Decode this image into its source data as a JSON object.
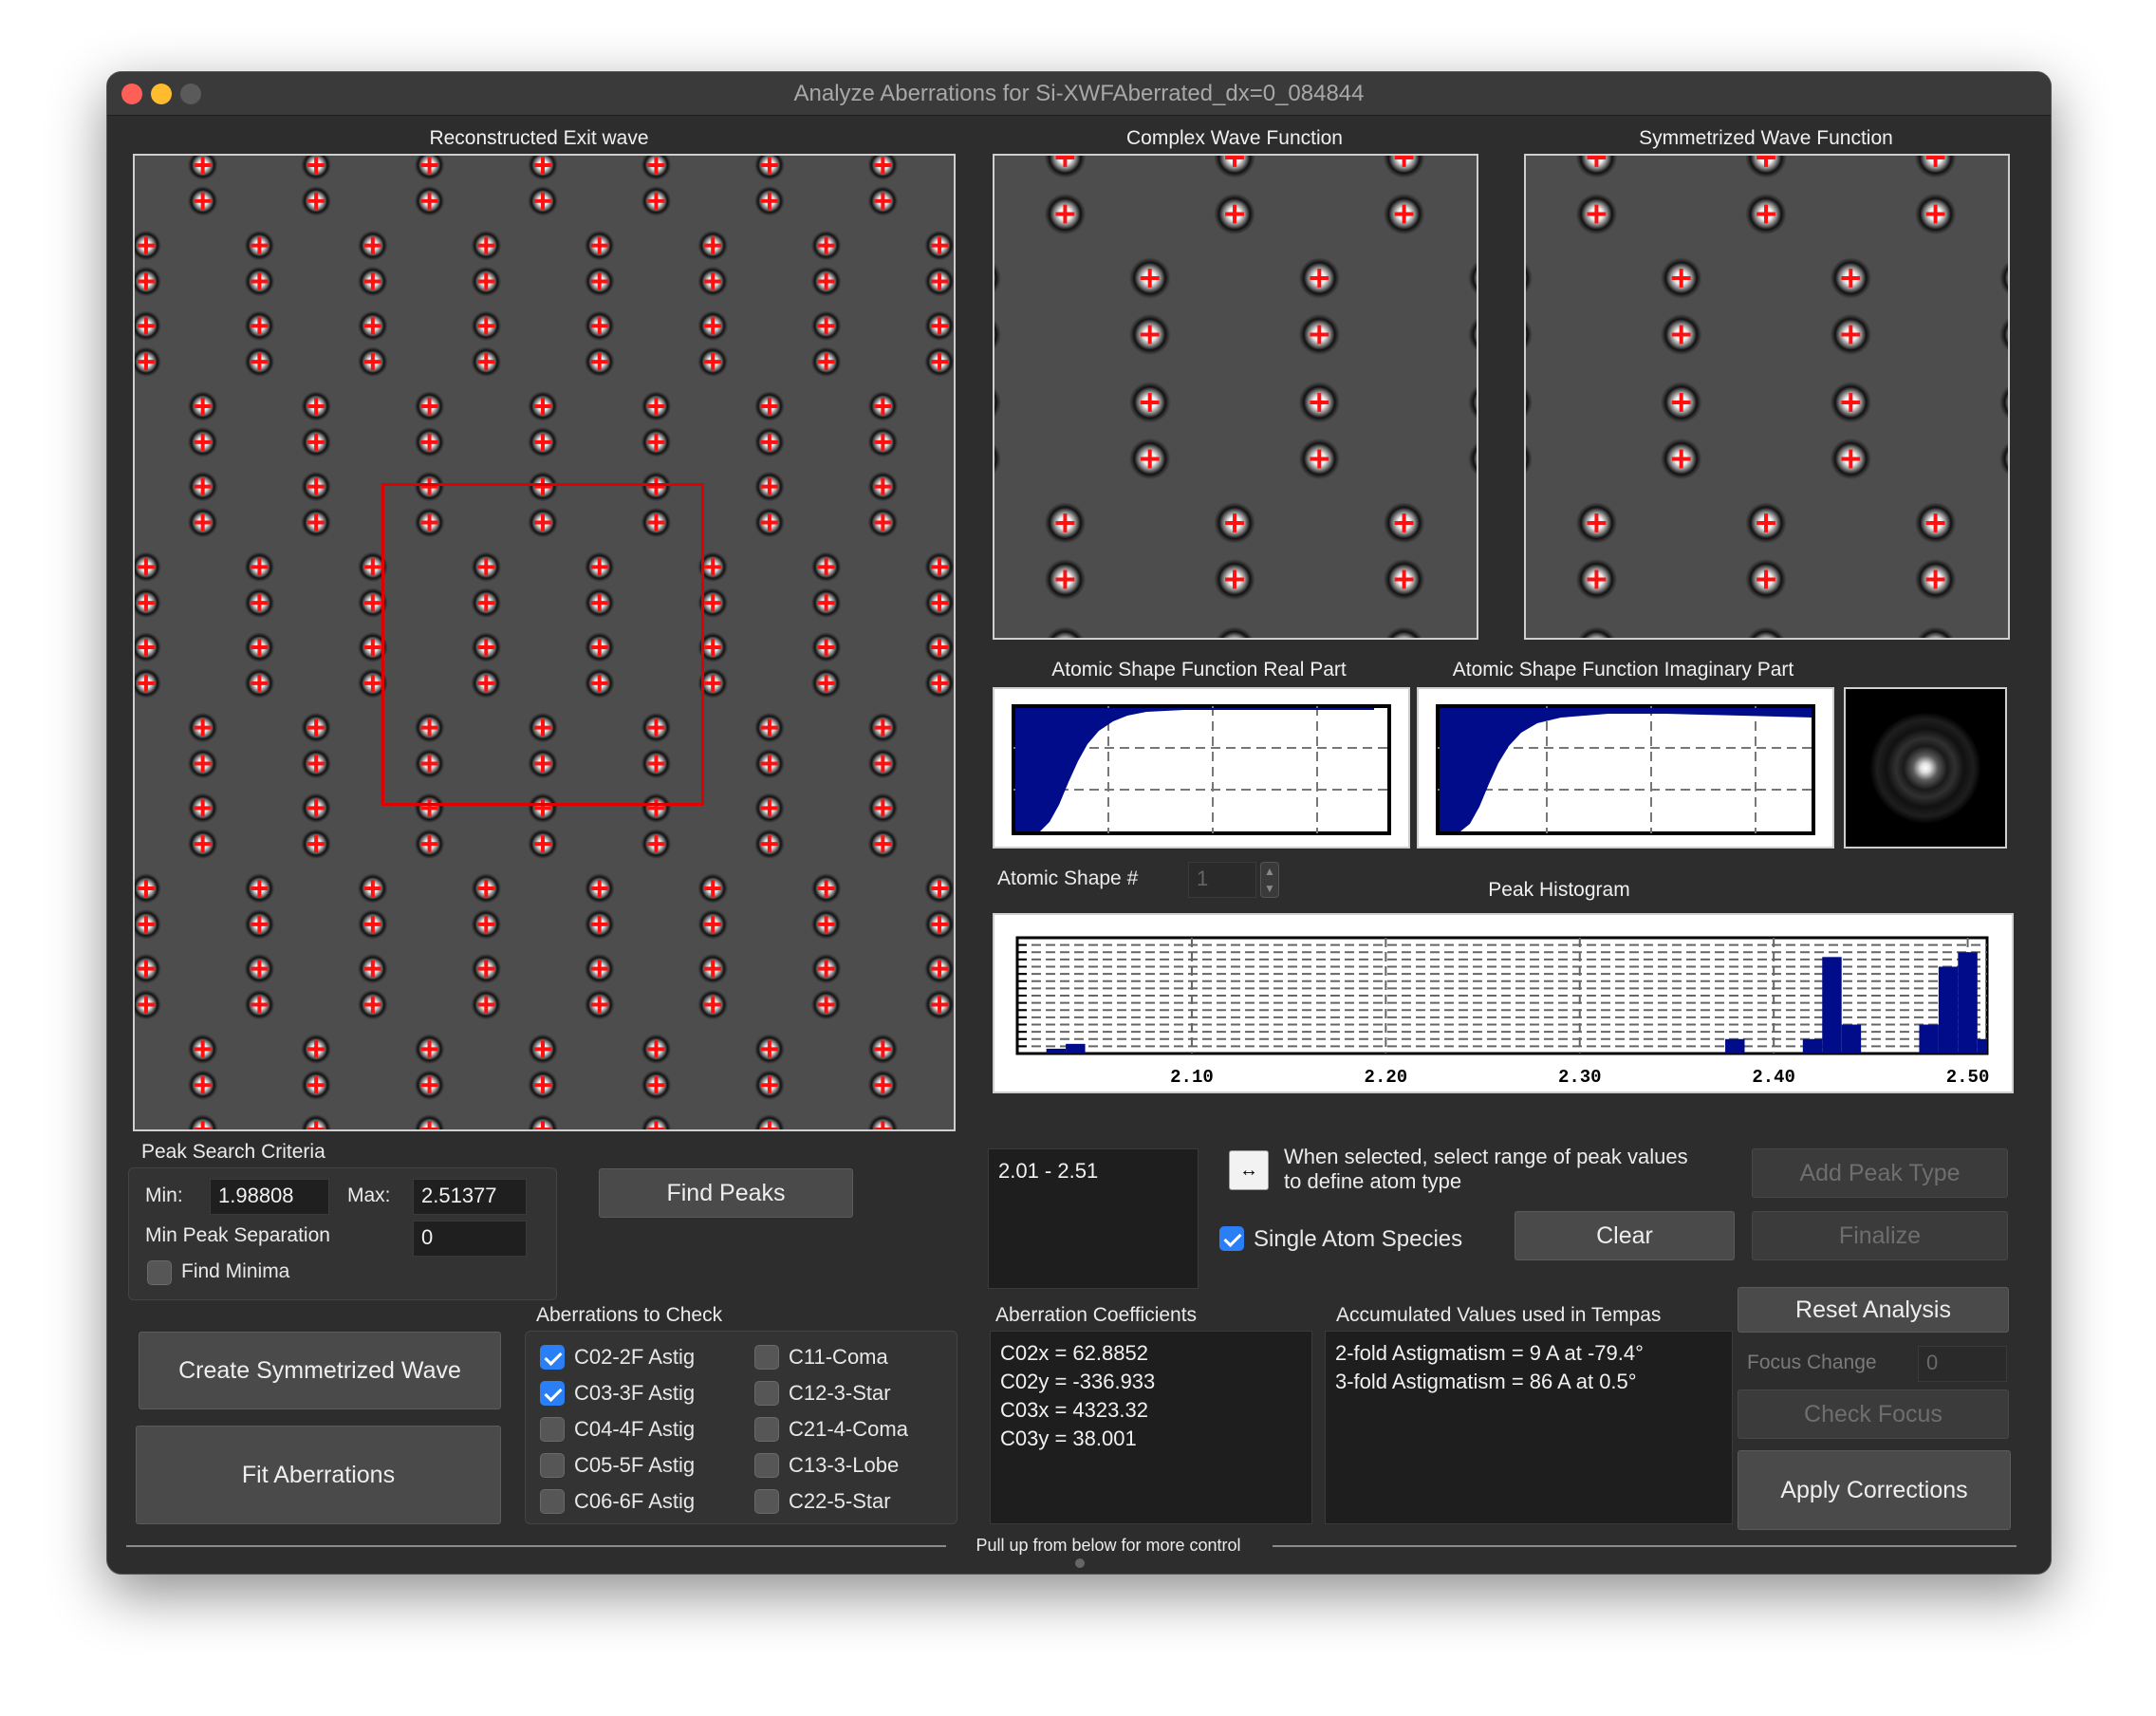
{
  "window": {
    "title": "Analyze Aberrations for Si-XWFAberrated_dx=0_084844",
    "colors": {
      "close": "#ff5f57",
      "minimize": "#febc2e",
      "zoom": "#5a5a5a"
    }
  },
  "panels": {
    "exit_wave_title": "Reconstructed Exit wave",
    "complex_title": "Complex Wave Function",
    "symmetrized_title": "Symmetrized Wave Function",
    "asf_real_title": "Atomic Shape Function Real Part",
    "asf_imag_title": "Atomic Shape Function Imaginary Part",
    "histogram_title": "Peak Histogram"
  },
  "atomic_shape": {
    "label": "Atomic Shape #",
    "value": "1"
  },
  "peak_search": {
    "title": "Peak Search Criteria",
    "min_label": "Min:",
    "min_value": "1.98808",
    "max_label": "Max:",
    "max_value": "2.51377",
    "sep_label": "Min Peak Separation",
    "sep_value": "0",
    "find_minima_label": "Find Minima",
    "find_minima_checked": false,
    "find_peaks_button": "Find Peaks"
  },
  "peak_range": {
    "list_item": "2.01 - 2.51",
    "hint_line1": "When selected, select range of peak values",
    "hint_line2": "to define atom type",
    "single_species_label": "Single Atom Species",
    "single_species_checked": true,
    "clear_button": "Clear",
    "add_peak_type_button": "Add Peak Type",
    "finalize_button": "Finalize"
  },
  "aberrations": {
    "title": "Aberrations to Check",
    "items": [
      {
        "label": "C02-2F Astig",
        "checked": true
      },
      {
        "label": "C03-3F Astig",
        "checked": true
      },
      {
        "label": "C04-4F Astig",
        "checked": false
      },
      {
        "label": "C05-5F Astig",
        "checked": false
      },
      {
        "label": "C06-6F Astig",
        "checked": false
      },
      {
        "label": "C11-Coma",
        "checked": false
      },
      {
        "label": "C12-3-Star",
        "checked": false
      },
      {
        "label": "C21-4-Coma",
        "checked": false
      },
      {
        "label": "C13-3-Lobe",
        "checked": false
      },
      {
        "label": "C22-5-Star",
        "checked": false
      }
    ]
  },
  "actions": {
    "create_symmetrized": "Create Symmetrized Wave",
    "fit_aberrations": "Fit Aberrations",
    "reset_analysis": "Reset Analysis",
    "focus_change_label": "Focus Change",
    "focus_change_value": "0",
    "check_focus": "Check Focus",
    "apply_corrections": "Apply Corrections"
  },
  "coefficients": {
    "title": "Aberration Coefficients",
    "lines": [
      "C02x = 62.8852",
      "C02y = -336.933",
      "C03x = 4323.32",
      "C03y = 38.001"
    ]
  },
  "accumulated": {
    "title": "Accumulated Values used in Tempas",
    "lines": [
      "2-fold Astigmatism = 9 A at -79.4°",
      "3-fold Astigmatism = 86 A at 0.5°"
    ]
  },
  "footer": {
    "pull_up": "Pull up from below for more control"
  },
  "chart_data": [
    {
      "type": "bar",
      "name": "Peak Histogram",
      "x_ticks": [
        "2.10",
        "2.20",
        "2.30",
        "2.40",
        "2.50"
      ],
      "xlim": [
        2.01,
        2.51
      ],
      "bins": [
        {
          "x": 2.03,
          "count": 1
        },
        {
          "x": 2.04,
          "count": 2
        },
        {
          "x": 2.38,
          "count": 3
        },
        {
          "x": 2.42,
          "count": 3
        },
        {
          "x": 2.43,
          "count": 20
        },
        {
          "x": 2.44,
          "count": 6
        },
        {
          "x": 2.48,
          "count": 6
        },
        {
          "x": 2.49,
          "count": 18
        },
        {
          "x": 2.5,
          "count": 21
        },
        {
          "x": 2.51,
          "count": 3
        }
      ],
      "ymax": 24,
      "bar_color": "#000c8a"
    }
  ]
}
